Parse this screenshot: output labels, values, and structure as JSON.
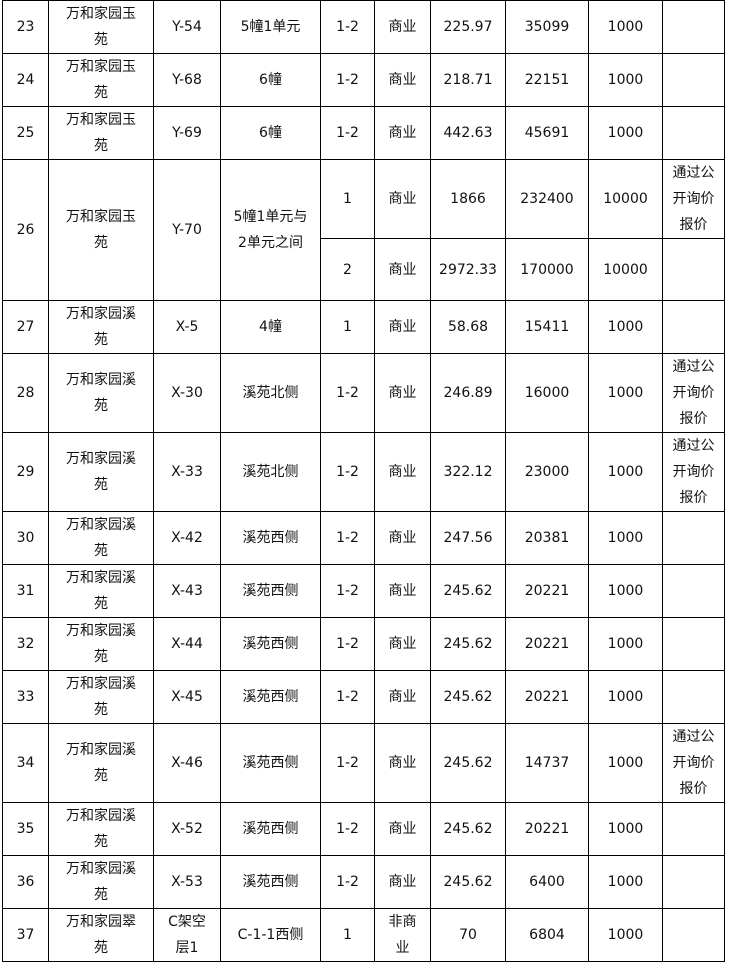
{
  "table": {
    "rows": [
      [
        "23",
        "万和家园玉苑",
        "Y-54",
        "5幢1单元",
        "1-2",
        "商业",
        "225.97",
        "35099",
        "1000"
      ],
      [
        "24",
        "万和家园玉苑",
        "Y-68",
        "6幢",
        "1-2",
        "商业",
        "218.71",
        "22151",
        "1000"
      ],
      [
        "25",
        "万和家园玉苑",
        "Y-69",
        "6幢",
        "1-2",
        "商业",
        "442.63",
        "45691",
        "1000"
      ],
      [
        "26",
        "万和家园玉苑",
        "Y-70",
        "5幢1单元与2单元之间",
        "1",
        "商业",
        "1866",
        "232400",
        "10000",
        "通过公开询价报价"
      ],
      [
        "2",
        "商业",
        "2972.33",
        "170000",
        "10000"
      ],
      [
        "27",
        "万和家园溪苑",
        "X-5",
        "4幢",
        "1",
        "商业",
        "58.68",
        "15411",
        "1000"
      ],
      [
        "28",
        "万和家园溪苑",
        "X-30",
        "溪苑北侧",
        "1-2",
        "商业",
        "246.89",
        "16000",
        "1000",
        "通过公开询价报价"
      ],
      [
        "29",
        "万和家园溪苑",
        "X-33",
        "溪苑北侧",
        "1-2",
        "商业",
        "322.12",
        "23000",
        "1000",
        "通过公开询价报价"
      ],
      [
        "30",
        "万和家园溪苑",
        "X-42",
        "溪苑西侧",
        "1-2",
        "商业",
        "247.56",
        "20381",
        "1000"
      ],
      [
        "31",
        "万和家园溪苑",
        "X-43",
        "溪苑西侧",
        "1-2",
        "商业",
        "245.62",
        "20221",
        "1000"
      ],
      [
        "32",
        "万和家园溪苑",
        "X-44",
        "溪苑西侧",
        "1-2",
        "商业",
        "245.62",
        "20221",
        "1000"
      ],
      [
        "33",
        "万和家园溪苑",
        "X-45",
        "溪苑西侧",
        "1-2",
        "商业",
        "245.62",
        "20221",
        "1000"
      ],
      [
        "34",
        "万和家园溪苑",
        "X-46",
        "溪苑西侧",
        "1-2",
        "商业",
        "245.62",
        "14737",
        "1000",
        "通过公开询价报价"
      ],
      [
        "35",
        "万和家园溪苑",
        "X-52",
        "溪苑西侧",
        "1-2",
        "商业",
        "245.62",
        "20221",
        "1000"
      ],
      [
        "36",
        "万和家园溪苑",
        "X-53",
        "溪苑西侧",
        "1-2",
        "商业",
        "245.62",
        "6400",
        "1000"
      ],
      [
        "37",
        "万和家园翠苑",
        "C架空层1",
        "C-1-1西侧",
        "1",
        "非商业",
        "70",
        "6804",
        "1000"
      ]
    ]
  }
}
